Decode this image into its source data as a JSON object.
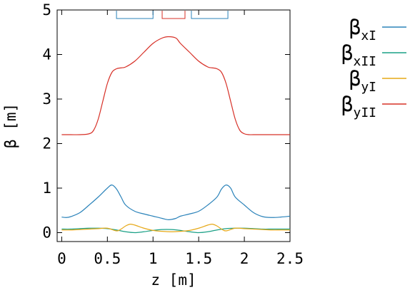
{
  "chart_data": {
    "type": "line",
    "xlabel": "z [m]",
    "ylabel": "β [m]",
    "xlim": [
      -0.05,
      2.5
    ],
    "ylim": [
      -0.2,
      5
    ],
    "xticks": [
      "0",
      "0.5",
      "1",
      "1.5",
      "2",
      "2.5"
    ],
    "yticks": [
      "0",
      "1",
      "2",
      "3",
      "4",
      "5"
    ],
    "grid": false,
    "legend_position": "outside-right",
    "series": [
      {
        "symbol": "β",
        "subscript": "xI",
        "color": "#2b83ba",
        "x": [
          0,
          0.05,
          0.1,
          0.2,
          0.3,
          0.4,
          0.5,
          0.55,
          0.6,
          0.65,
          0.7,
          0.8,
          0.9,
          1.0,
          1.1,
          1.17,
          1.25,
          1.3,
          1.4,
          1.5,
          1.6,
          1.7,
          1.75,
          1.8,
          1.85,
          1.9,
          2.0,
          2.1,
          2.2,
          2.3,
          2.4,
          2.5
        ],
        "y": [
          0.35,
          0.34,
          0.36,
          0.45,
          0.62,
          0.8,
          1.0,
          1.07,
          0.98,
          0.8,
          0.62,
          0.48,
          0.42,
          0.37,
          0.32,
          0.29,
          0.32,
          0.37,
          0.42,
          0.48,
          0.62,
          0.8,
          0.98,
          1.07,
          1.0,
          0.8,
          0.62,
          0.45,
          0.36,
          0.34,
          0.35,
          0.37
        ]
      },
      {
        "symbol": "β",
        "subscript": "xII",
        "color": "#1aa086",
        "x": [
          0,
          0.1,
          0.2,
          0.3,
          0.4,
          0.5,
          0.6,
          0.7,
          0.8,
          0.9,
          1.0,
          1.1,
          1.2,
          1.3,
          1.4,
          1.5,
          1.6,
          1.7,
          1.8,
          1.9,
          2.0,
          2.1,
          2.2,
          2.3,
          2.4,
          2.5
        ],
        "y": [
          0.08,
          0.08,
          0.09,
          0.1,
          0.1,
          0.09,
          0.06,
          0.02,
          0.0,
          0.02,
          0.05,
          0.07,
          0.07,
          0.05,
          0.02,
          0.0,
          0.02,
          0.06,
          0.09,
          0.1,
          0.1,
          0.09,
          0.08,
          0.08,
          0.08,
          0.08
        ]
      },
      {
        "symbol": "β",
        "subscript": "yI",
        "color": "#e6a817",
        "x": [
          0,
          0.1,
          0.2,
          0.3,
          0.4,
          0.5,
          0.6,
          0.65,
          0.7,
          0.75,
          0.8,
          0.9,
          1.0,
          1.1,
          1.2,
          1.3,
          1.4,
          1.5,
          1.6,
          1.65,
          1.7,
          1.75,
          1.8,
          1.9,
          2.0,
          2.1,
          2.2,
          2.3,
          2.4,
          2.5
        ],
        "y": [
          0.06,
          0.06,
          0.07,
          0.08,
          0.09,
          0.1,
          0.04,
          0.08,
          0.15,
          0.19,
          0.17,
          0.1,
          0.05,
          0.03,
          0.02,
          0.03,
          0.05,
          0.1,
          0.17,
          0.19,
          0.15,
          0.08,
          0.04,
          0.1,
          0.09,
          0.08,
          0.07,
          0.06,
          0.06,
          0.06
        ]
      },
      {
        "symbol": "β",
        "subscript": "yII",
        "color": "#d73027",
        "x": [
          0,
          0.1,
          0.2,
          0.3,
          0.35,
          0.4,
          0.45,
          0.5,
          0.55,
          0.6,
          0.65,
          0.7,
          0.8,
          0.9,
          1.0,
          1.1,
          1.17,
          1.25,
          1.3,
          1.4,
          1.5,
          1.6,
          1.65,
          1.7,
          1.75,
          1.8,
          1.85,
          1.9,
          1.95,
          2.0,
          2.05,
          2.1,
          2.2,
          2.3,
          2.4,
          2.5
        ],
        "y": [
          2.2,
          2.2,
          2.2,
          2.22,
          2.3,
          2.55,
          2.95,
          3.35,
          3.6,
          3.68,
          3.7,
          3.72,
          3.85,
          4.05,
          4.25,
          4.37,
          4.4,
          4.37,
          4.25,
          4.05,
          3.85,
          3.72,
          3.7,
          3.68,
          3.6,
          3.35,
          2.95,
          2.55,
          2.3,
          2.22,
          2.2,
          2.2,
          2.2,
          2.2,
          2.2,
          2.2
        ]
      }
    ],
    "markers": [
      {
        "color": "#2b83ba",
        "x0": 0.6,
        "x1": 1.0
      },
      {
        "color": "#d73027",
        "x0": 1.1,
        "x1": 1.35
      },
      {
        "color": "#2b83ba",
        "x0": 1.42,
        "x1": 1.82
      }
    ]
  }
}
